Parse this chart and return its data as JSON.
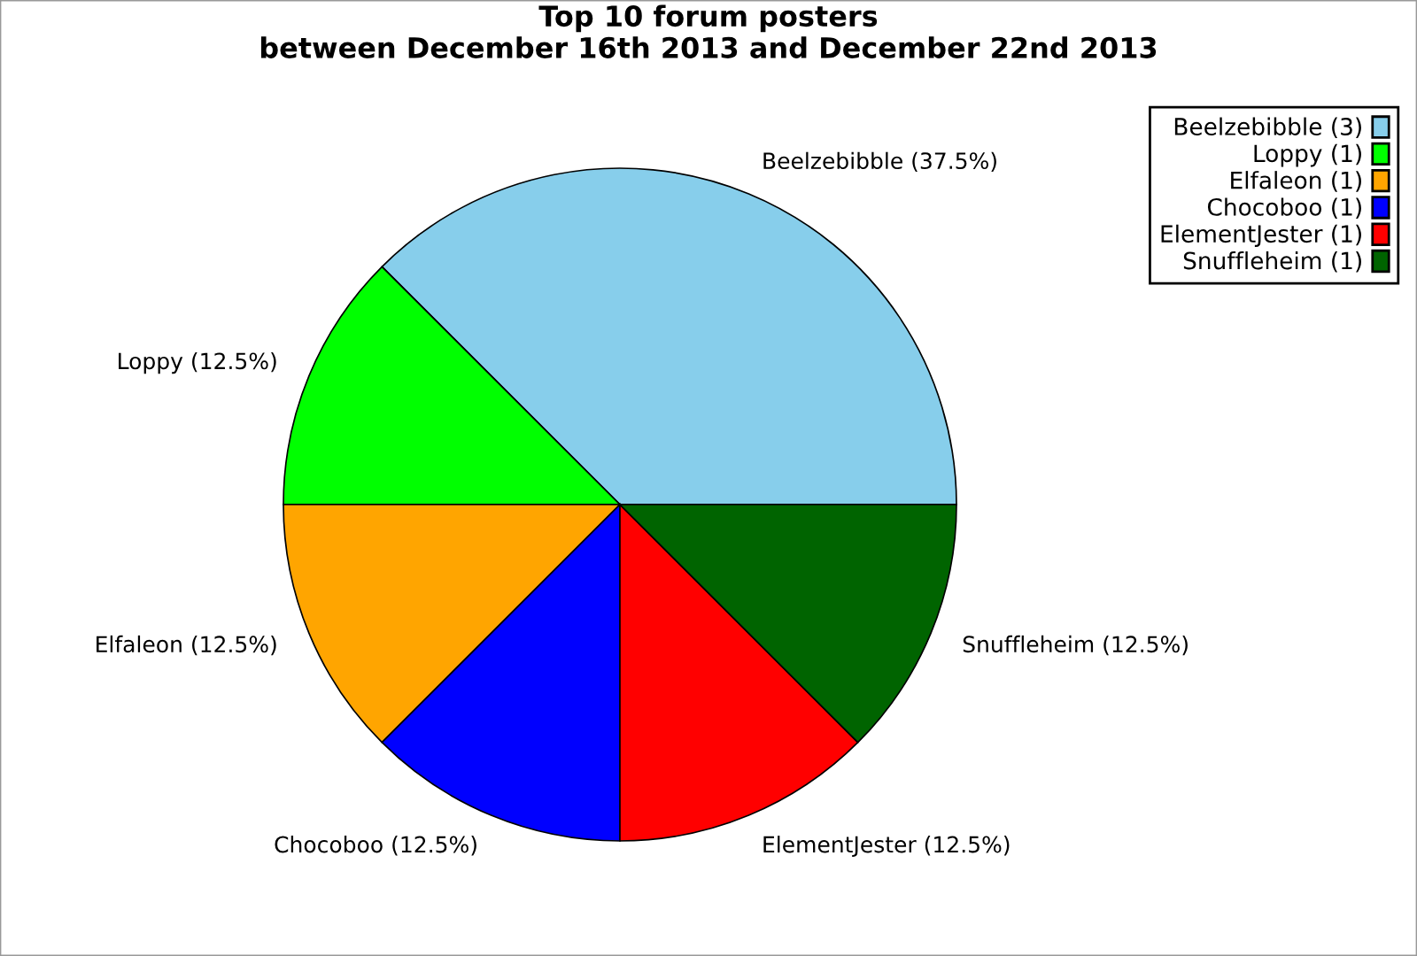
{
  "chart_data": {
    "type": "pie",
    "title": "Top 10 forum posters\nbetween December 16th 2013 and December 22nd 2013",
    "categories": [
      "Beelzebibble (3)",
      "Loppy (1)",
      "Elfaleon (1)",
      "Chocoboo (1)",
      "ElementJester (1)",
      "Snuffleheim (1)"
    ],
    "values": [
      37.5,
      12.5,
      12.5,
      12.5,
      12.5,
      12.5
    ],
    "value_labels": [
      "Beelzebibble (37.5%)",
      "Loppy (12.5%)",
      "Elfaleon (12.5%)",
      "Chocoboo (12.5%)",
      "ElementJester (12.5%)",
      "Snuffleheim (12.5%)"
    ],
    "colors": [
      "#87ceeb",
      "#00ff00",
      "#ffa500",
      "#0000ff",
      "#ff0000",
      "#006400"
    ],
    "legend": "top right"
  }
}
